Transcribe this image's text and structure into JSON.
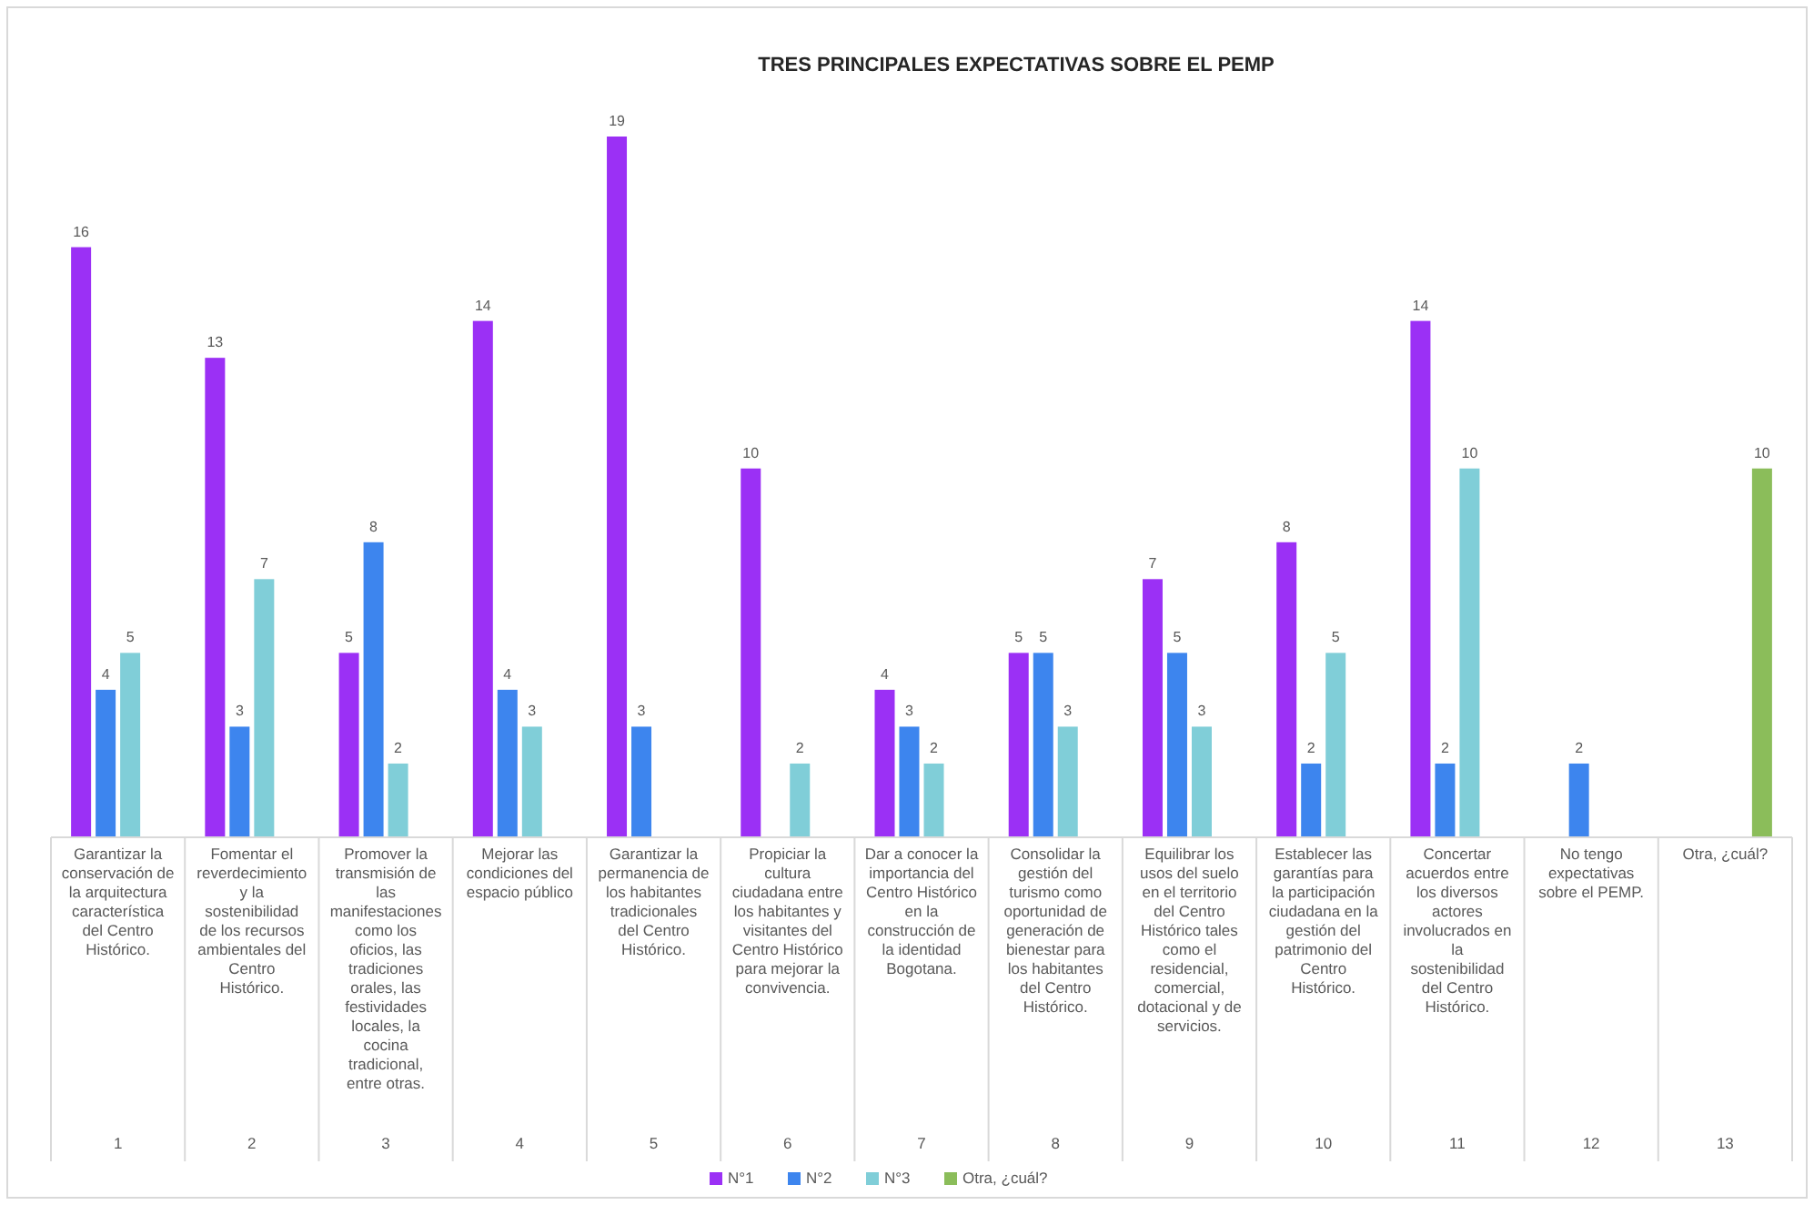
{
  "chart_data": {
    "type": "bar",
    "title": "TRES PRINCIPALES EXPECTATIVAS SOBRE EL PEMP",
    "categories": [
      "1",
      "2",
      "3",
      "4",
      "5",
      "6",
      "7",
      "8",
      "9",
      "10",
      "11",
      "12",
      "13"
    ],
    "annotations": [
      "Garantizar la conservación de la arquitectura característica del Centro Histórico.",
      "Fomentar el reverdecimiento y la sostenibilidad de los recursos ambientales del Centro Histórico.",
      "Promover la transmisión de las manifestaciones como los oficios, las tradiciones orales, las festividades locales, la cocina tradicional, entre otras.",
      "Mejorar las condiciones del espacio público",
      "Garantizar la permanencia de los habitantes tradicionales del Centro Histórico.",
      "Propiciar la cultura ciudadana entre los habitantes y visitantes del Centro Histórico para mejorar la convivencia.",
      "Dar a conocer la importancia del Centro Histórico en la construcción de la identidad Bogotana.",
      "Consolidar la gestión del turismo como oportunidad de generación de bienestar para los habitantes del Centro Histórico.",
      "Equilibrar los usos del suelo en el territorio del Centro Histórico tales como el residencial, comercial, dotacional y de servicios.",
      "Establecer las garantías para la participación ciudadana en la gestión del patrimonio del Centro Histórico.",
      "Concertar acuerdos entre los diversos actores involucrados en la sostenibilidad del Centro Histórico.",
      "No tengo expectativas sobre el PEMP.",
      "Otra, ¿cuál?"
    ],
    "series": [
      {
        "name": "N°1",
        "color": "#9b30f5",
        "values": [
          16,
          13,
          5,
          14,
          19,
          10,
          4,
          5,
          7,
          8,
          14,
          null,
          null
        ]
      },
      {
        "name": "N°2",
        "color": "#3d85ee",
        "values": [
          4,
          3,
          8,
          4,
          3,
          null,
          3,
          5,
          5,
          2,
          2,
          2,
          null
        ]
      },
      {
        "name": "N°3",
        "color": "#80ced8",
        "values": [
          5,
          7,
          2,
          3,
          null,
          2,
          2,
          3,
          3,
          5,
          10,
          null,
          null
        ]
      },
      {
        "name": "Otra, ¿cuál?",
        "color": "#8bbd5a",
        "values": [
          null,
          null,
          null,
          null,
          null,
          null,
          null,
          null,
          null,
          null,
          null,
          null,
          10
        ]
      }
    ],
    "data_labels": true,
    "legend": "bottom"
  }
}
